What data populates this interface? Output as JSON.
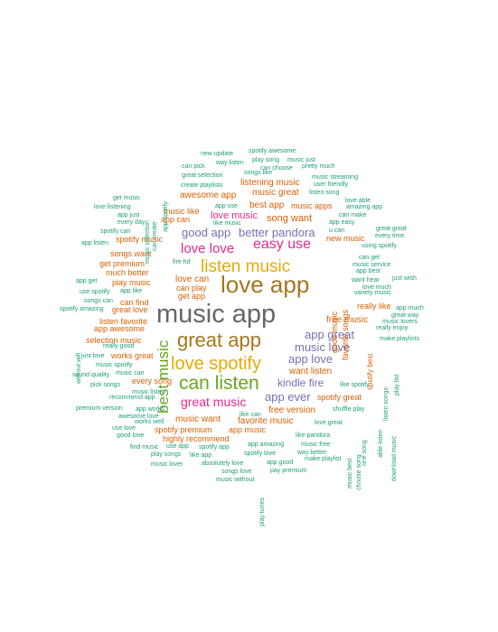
{
  "palette": {
    "green": "#1b9e77",
    "orange": "#d95f02",
    "purple": "#7570b3",
    "magenta": "#e7298a",
    "lime": "#66a61e",
    "gold": "#e6ab02",
    "brown": "#a6761d",
    "gray": "#666666"
  },
  "words": [
    {
      "text": "music app",
      "color": "gray"
    },
    {
      "text": "love app",
      "color": "brown"
    },
    {
      "text": "great app",
      "color": "brown"
    },
    {
      "text": "can listen",
      "color": "lime"
    },
    {
      "text": "love spotify",
      "color": "gold"
    },
    {
      "text": "listen music",
      "color": "gold"
    },
    {
      "text": "best music",
      "color": "lime"
    },
    {
      "text": "easy use",
      "color": "magenta"
    },
    {
      "text": "love love",
      "color": "magenta"
    },
    {
      "text": "great music",
      "color": "magenta"
    },
    {
      "text": "music love",
      "color": "purple"
    },
    {
      "text": "app love",
      "color": "purple"
    },
    {
      "text": "app great",
      "color": "purple"
    },
    {
      "text": "app ever",
      "color": "purple"
    },
    {
      "text": "good app",
      "color": "purple"
    },
    {
      "text": "better pandora",
      "color": "purple"
    },
    {
      "text": "kindle fire",
      "color": "purple"
    },
    {
      "text": "love music",
      "color": "magenta"
    },
    {
      "text": "song want",
      "color": "orange"
    },
    {
      "text": "best app",
      "color": "orange"
    },
    {
      "text": "awesome app",
      "color": "orange"
    },
    {
      "text": "music great",
      "color": "orange"
    },
    {
      "text": "listening music",
      "color": "orange"
    },
    {
      "text": "music like",
      "color": "orange"
    },
    {
      "text": "app can",
      "color": "orange"
    },
    {
      "text": "spotify music",
      "color": "orange"
    },
    {
      "text": "songs want",
      "color": "orange"
    },
    {
      "text": "get premium",
      "color": "orange"
    },
    {
      "text": "much better",
      "color": "orange"
    },
    {
      "text": "play music",
      "color": "orange"
    },
    {
      "text": "love can",
      "color": "orange"
    },
    {
      "text": "can play",
      "color": "orange"
    },
    {
      "text": "get app",
      "color": "orange"
    },
    {
      "text": "can find",
      "color": "orange"
    },
    {
      "text": "great love",
      "color": "orange"
    },
    {
      "text": "listen favorite",
      "color": "orange"
    },
    {
      "text": "app awesome",
      "color": "orange"
    },
    {
      "text": "selection music",
      "color": "orange"
    },
    {
      "text": "works great",
      "color": "orange"
    },
    {
      "text": "want listen",
      "color": "orange"
    },
    {
      "text": "free music",
      "color": "orange"
    },
    {
      "text": "new music",
      "color": "orange"
    },
    {
      "text": "really like",
      "color": "orange"
    },
    {
      "text": "every song",
      "color": "orange"
    },
    {
      "text": "spotify great",
      "color": "orange"
    },
    {
      "text": "free version",
      "color": "orange"
    },
    {
      "text": "music want",
      "color": "orange"
    },
    {
      "text": "favorite music",
      "color": "orange"
    },
    {
      "text": "spotify premium",
      "color": "orange"
    },
    {
      "text": "app music",
      "color": "orange"
    },
    {
      "text": "highly recommend",
      "color": "orange"
    },
    {
      "text": "music apps",
      "color": "orange"
    },
    {
      "text": "favorite songs",
      "color": "orange"
    },
    {
      "text": "good music",
      "color": "orange"
    },
    {
      "text": "spotify best",
      "color": "orange"
    },
    {
      "text": "new update",
      "color": "green"
    },
    {
      "text": "spotify awesome",
      "color": "green"
    },
    {
      "text": "way listen",
      "color": "green"
    },
    {
      "text": "play song",
      "color": "green"
    },
    {
      "text": "music just",
      "color": "green"
    },
    {
      "text": "can pick",
      "color": "green"
    },
    {
      "text": "can choose",
      "color": "green"
    },
    {
      "text": "pretty much",
      "color": "green"
    },
    {
      "text": "great selection",
      "color": "green"
    },
    {
      "text": "songs like",
      "color": "green"
    },
    {
      "text": "music streaming",
      "color": "green"
    },
    {
      "text": "create playlists",
      "color": "green"
    },
    {
      "text": "user friendly",
      "color": "green"
    },
    {
      "text": "listen song",
      "color": "green"
    },
    {
      "text": "get music",
      "color": "green"
    },
    {
      "text": "love able",
      "color": "green"
    },
    {
      "text": "love listening",
      "color": "green"
    },
    {
      "text": "app use",
      "color": "green"
    },
    {
      "text": "amazing app",
      "color": "green"
    },
    {
      "text": "app just",
      "color": "green"
    },
    {
      "text": "can make",
      "color": "green"
    },
    {
      "text": "every day",
      "color": "green"
    },
    {
      "text": "like music",
      "color": "green"
    },
    {
      "text": "app easy",
      "color": "green"
    },
    {
      "text": "spotify can",
      "color": "green"
    },
    {
      "text": "u can",
      "color": "green"
    },
    {
      "text": "great great",
      "color": "green"
    },
    {
      "text": "every time",
      "color": "green"
    },
    {
      "text": "app listen",
      "color": "green"
    },
    {
      "text": "using spotify",
      "color": "green"
    },
    {
      "text": "fire hd",
      "color": "green"
    },
    {
      "text": "can get",
      "color": "green"
    },
    {
      "text": "music service",
      "color": "green"
    },
    {
      "text": "app best",
      "color": "green"
    },
    {
      "text": "app get",
      "color": "green"
    },
    {
      "text": "just wish",
      "color": "green"
    },
    {
      "text": "want hear",
      "color": "green"
    },
    {
      "text": "love much",
      "color": "green"
    },
    {
      "text": "use spotify",
      "color": "green"
    },
    {
      "text": "app like",
      "color": "green"
    },
    {
      "text": "variety music",
      "color": "green"
    },
    {
      "text": "songs can",
      "color": "green"
    },
    {
      "text": "spotify amazing",
      "color": "green"
    },
    {
      "text": "app much",
      "color": "green"
    },
    {
      "text": "great way",
      "color": "green"
    },
    {
      "text": "music lovers",
      "color": "green"
    },
    {
      "text": "really enjoy",
      "color": "green"
    },
    {
      "text": "really good",
      "color": "green"
    },
    {
      "text": "make playlists",
      "color": "green"
    },
    {
      "text": "just love",
      "color": "green"
    },
    {
      "text": "music spotify",
      "color": "green"
    },
    {
      "text": "sound quality",
      "color": "green"
    },
    {
      "text": "music can",
      "color": "green"
    },
    {
      "text": "pick songs",
      "color": "green"
    },
    {
      "text": "music listen",
      "color": "green"
    },
    {
      "text": "recommend app",
      "color": "green"
    },
    {
      "text": "premium version",
      "color": "green"
    },
    {
      "text": "app works",
      "color": "green"
    },
    {
      "text": "like can",
      "color": "green"
    },
    {
      "text": "shuffle play",
      "color": "green"
    },
    {
      "text": "like spotify",
      "color": "green"
    },
    {
      "text": "awesome love",
      "color": "green"
    },
    {
      "text": "works well",
      "color": "green"
    },
    {
      "text": "love great",
      "color": "green"
    },
    {
      "text": "use love",
      "color": "green"
    },
    {
      "text": "good love",
      "color": "green"
    },
    {
      "text": "like pandora",
      "color": "green"
    },
    {
      "text": "find music",
      "color": "green"
    },
    {
      "text": "use app",
      "color": "green"
    },
    {
      "text": "spotify app",
      "color": "green"
    },
    {
      "text": "app amazing",
      "color": "green"
    },
    {
      "text": "music free",
      "color": "green"
    },
    {
      "text": "play songs",
      "color": "green"
    },
    {
      "text": "like app",
      "color": "green"
    },
    {
      "text": "spotify love",
      "color": "green"
    },
    {
      "text": "way better",
      "color": "green"
    },
    {
      "text": "music lover",
      "color": "green"
    },
    {
      "text": "absolutely love",
      "color": "green"
    },
    {
      "text": "app good",
      "color": "green"
    },
    {
      "text": "make playlist",
      "color": "green"
    },
    {
      "text": "songs love",
      "color": "green"
    },
    {
      "text": "pay premium",
      "color": "green"
    },
    {
      "text": "music without",
      "color": "green"
    },
    {
      "text": "music selection",
      "color": "green"
    },
    {
      "text": "can create",
      "color": "green"
    },
    {
      "text": "app spotify",
      "color": "green"
    },
    {
      "text": "without wifi",
      "color": "green"
    },
    {
      "text": "listen songs",
      "color": "green"
    },
    {
      "text": "play list",
      "color": "green"
    },
    {
      "text": "able listen",
      "color": "green"
    },
    {
      "text": "download music",
      "color": "green"
    },
    {
      "text": "music best",
      "color": "green"
    },
    {
      "text": "choose song",
      "color": "green"
    },
    {
      "text": "one song",
      "color": "green"
    },
    {
      "text": "play tunes",
      "color": "green"
    }
  ]
}
